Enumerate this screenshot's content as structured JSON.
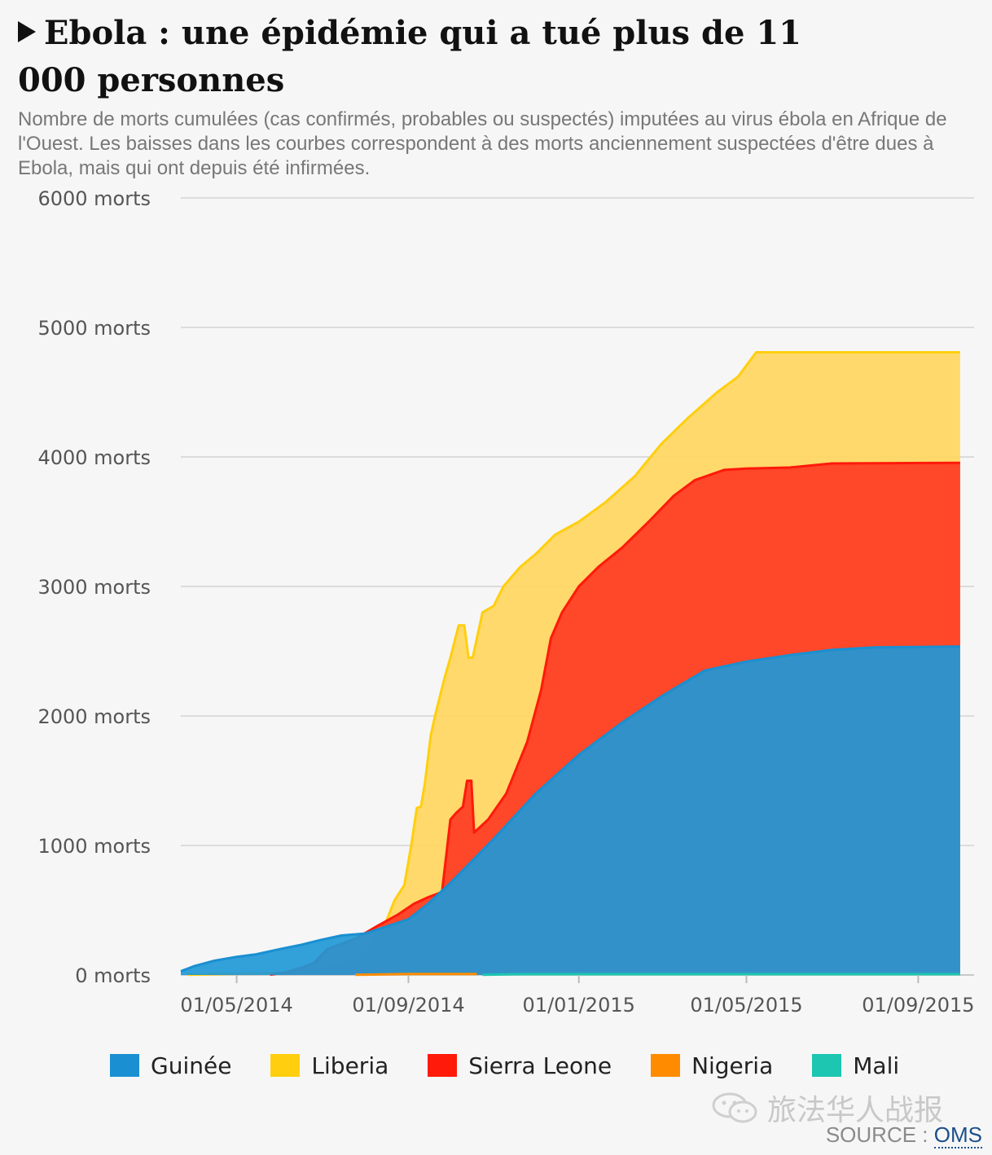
{
  "header": {
    "title": "Ebola : une épidémie qui a tué plus de 11 000 personnes",
    "subtitle": "Nombre de morts cumulées (cas confirmés, probables ou suspectés) imputées au virus ébola en Afrique de l'Ouest. Les baisses dans les courbes correspondent à des morts anciennement suspectées d'être dues à Ebola, mais qui ont depuis été infirmées."
  },
  "legend": {
    "items": [
      {
        "label": "Guinée",
        "color": "#1a8fd1"
      },
      {
        "label": "Liberia",
        "color": "#ffcf0f"
      },
      {
        "label": "Sierra Leone",
        "color": "#ff1a0a"
      },
      {
        "label": "Nigeria",
        "color": "#ff8c00"
      },
      {
        "label": "Mali",
        "color": "#1cc6b0"
      }
    ]
  },
  "watermark": {
    "text": "旅法华人战报",
    "icon": "wechat-icon"
  },
  "source": {
    "label": "SOURCE : ",
    "link": "OMS"
  },
  "chart_data": {
    "type": "area",
    "stacked": false,
    "title": "",
    "xlabel": "",
    "ylabel": "",
    "ylim": [
      0,
      6000
    ],
    "xlim": [
      "2014-03-22",
      "2015-10-11"
    ],
    "y_ticks": [
      {
        "value": 0,
        "label": "0 morts"
      },
      {
        "value": 1000,
        "label": "1000 morts"
      },
      {
        "value": 2000,
        "label": "2000 morts"
      },
      {
        "value": 3000,
        "label": "3000 morts"
      },
      {
        "value": 4000,
        "label": "4000 morts"
      },
      {
        "value": 5000,
        "label": "5000 morts"
      },
      {
        "value": 6000,
        "label": "6000 morts"
      }
    ],
    "x_ticks": [
      {
        "value": "2014-05-01",
        "label": "01/05/2014"
      },
      {
        "value": "2014-09-01",
        "label": "01/09/2014"
      },
      {
        "value": "2015-01-01",
        "label": "01/01/2015"
      },
      {
        "value": "2015-05-01",
        "label": "01/05/2015"
      },
      {
        "value": "2015-09-01",
        "label": "01/09/2015"
      }
    ],
    "grid": true,
    "legend_position": "bottom",
    "series": [
      {
        "name": "Liberia",
        "color": "#ffcf0f",
        "fill": "#ffd65e",
        "points": [
          [
            "2014-03-27",
            2
          ],
          [
            "2014-06-20",
            20
          ],
          [
            "2014-07-20",
            105
          ],
          [
            "2014-08-05",
            255
          ],
          [
            "2014-08-16",
            413
          ],
          [
            "2014-08-22",
            576
          ],
          [
            "2014-08-29",
            694
          ],
          [
            "2014-09-03",
            1000
          ],
          [
            "2014-09-07",
            1290
          ],
          [
            "2014-09-10",
            1300
          ],
          [
            "2014-09-13",
            1500
          ],
          [
            "2014-09-17",
            1850
          ],
          [
            "2014-09-20",
            2000
          ],
          [
            "2014-09-27",
            2300
          ],
          [
            "2014-10-01",
            2450
          ],
          [
            "2014-10-07",
            2700
          ],
          [
            "2014-10-11",
            2700
          ],
          [
            "2014-10-14",
            2450
          ],
          [
            "2014-10-17",
            2450
          ],
          [
            "2014-10-24",
            2800
          ],
          [
            "2014-11-01",
            2850
          ],
          [
            "2014-11-08",
            3000
          ],
          [
            "2014-11-20",
            3150
          ],
          [
            "2014-12-01",
            3250
          ],
          [
            "2014-12-15",
            3400
          ],
          [
            "2015-01-01",
            3500
          ],
          [
            "2015-01-20",
            3650
          ],
          [
            "2015-02-10",
            3850
          ],
          [
            "2015-03-01",
            4100
          ],
          [
            "2015-03-20",
            4300
          ],
          [
            "2015-04-10",
            4500
          ],
          [
            "2015-04-25",
            4620
          ],
          [
            "2015-05-08",
            4808
          ],
          [
            "2015-06-20",
            4808
          ],
          [
            "2015-10-01",
            4808
          ]
        ]
      },
      {
        "name": "Sierra Leone",
        "color": "#ff1a0a",
        "fill": "#ff3b24",
        "points": [
          [
            "2014-05-25",
            2
          ],
          [
            "2014-06-05",
            20
          ],
          [
            "2014-06-15",
            50
          ],
          [
            "2014-06-25",
            90
          ],
          [
            "2014-07-05",
            200
          ],
          [
            "2014-07-25",
            280
          ],
          [
            "2014-08-10",
            380
          ],
          [
            "2014-08-25",
            470
          ],
          [
            "2014-09-05",
            550
          ],
          [
            "2014-09-15",
            600
          ],
          [
            "2014-09-25",
            640
          ],
          [
            "2014-10-01",
            1200
          ],
          [
            "2014-10-05",
            1250
          ],
          [
            "2014-10-10",
            1300
          ],
          [
            "2014-10-13",
            1500
          ],
          [
            "2014-10-16",
            1500
          ],
          [
            "2014-10-18",
            1100
          ],
          [
            "2014-10-28",
            1200
          ],
          [
            "2014-11-10",
            1400
          ],
          [
            "2014-11-25",
            1800
          ],
          [
            "2014-12-05",
            2200
          ],
          [
            "2014-12-12",
            2600
          ],
          [
            "2014-12-20",
            2800
          ],
          [
            "2015-01-01",
            3000
          ],
          [
            "2015-01-15",
            3150
          ],
          [
            "2015-02-01",
            3300
          ],
          [
            "2015-02-20",
            3500
          ],
          [
            "2015-03-10",
            3700
          ],
          [
            "2015-03-25",
            3820
          ],
          [
            "2015-04-15",
            3900
          ],
          [
            "2015-05-01",
            3910
          ],
          [
            "2015-06-01",
            3918
          ],
          [
            "2015-07-01",
            3950
          ],
          [
            "2015-10-01",
            3955
          ]
        ]
      },
      {
        "name": "Guinée",
        "color": "#1a8fd1",
        "fill": "#2198d6",
        "points": [
          [
            "2014-03-22",
            29
          ],
          [
            "2014-04-01",
            70
          ],
          [
            "2014-04-15",
            110
          ],
          [
            "2014-05-01",
            140
          ],
          [
            "2014-05-15",
            160
          ],
          [
            "2014-06-01",
            200
          ],
          [
            "2014-06-15",
            230
          ],
          [
            "2014-06-30",
            270
          ],
          [
            "2014-07-15",
            305
          ],
          [
            "2014-08-01",
            320
          ],
          [
            "2014-08-15",
            370
          ],
          [
            "2014-09-01",
            430
          ],
          [
            "2014-09-15",
            550
          ],
          [
            "2014-10-01",
            710
          ],
          [
            "2014-11-01",
            1050
          ],
          [
            "2014-12-01",
            1400
          ],
          [
            "2015-01-01",
            1700
          ],
          [
            "2015-02-01",
            1950
          ],
          [
            "2015-03-01",
            2150
          ],
          [
            "2015-04-01",
            2350
          ],
          [
            "2015-05-01",
            2420
          ],
          [
            "2015-06-01",
            2470
          ],
          [
            "2015-07-01",
            2510
          ],
          [
            "2015-08-01",
            2530
          ],
          [
            "2015-10-01",
            2536
          ]
        ]
      },
      {
        "name": "Nigeria",
        "color": "#ff8c00",
        "fill": "#ff8c00",
        "points": [
          [
            "2014-07-25",
            1
          ],
          [
            "2014-08-10",
            4
          ],
          [
            "2014-09-01",
            8
          ],
          [
            "2014-10-20",
            8
          ]
        ]
      },
      {
        "name": "Mali",
        "color": "#1cc6b0",
        "fill": "#1cc6b0",
        "points": [
          [
            "2014-10-24",
            1
          ],
          [
            "2014-11-20",
            6
          ],
          [
            "2015-10-01",
            6
          ]
        ]
      }
    ]
  }
}
